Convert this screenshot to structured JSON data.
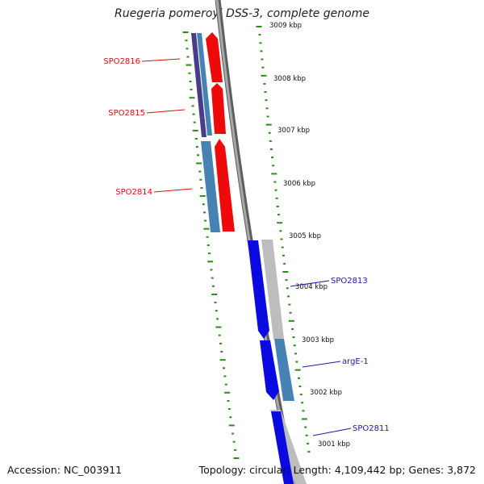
{
  "title": "Ruegeria pomeroyi DSS-3, complete genome",
  "footer": {
    "accession": "Accession: NC_003911",
    "summary": "Topology: circular; Length: 4,109,442 bp; Genes: 3,872"
  },
  "colors": {
    "backbone": "#8a8a8a",
    "tick": "#2a8a1a",
    "forward_gene": "#0a0ae0",
    "reverse_gene": "#ee0a0a",
    "forward_label": "#1a1aa0",
    "reverse_label": "#d01010",
    "cds_blue": "#4682b4",
    "cds_purple": "#483d8b",
    "cds_grey": "#bdbdbd"
  },
  "kbp_labels": [
    "3009 kbp",
    "3008 kbp",
    "3007 kbp",
    "3006 kbp",
    "3005 kbp",
    "3004 kbp",
    "3003 kbp",
    "3002 kbp",
    "3001 kbp"
  ],
  "gene_labels": {
    "left": [
      "SPO2816",
      "SPO2815",
      "SPO2814"
    ],
    "right": [
      "SPO2813",
      "argE-1",
      "SPO2811"
    ]
  }
}
